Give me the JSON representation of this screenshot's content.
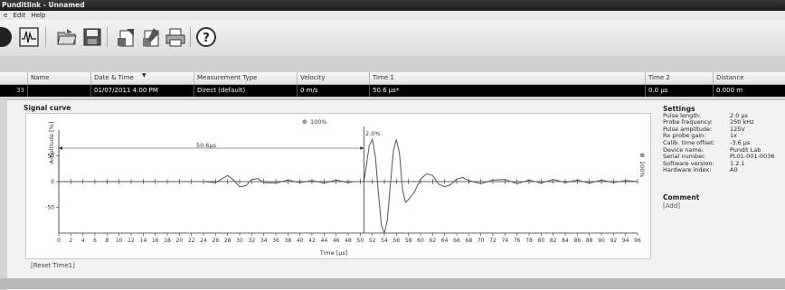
{
  "window": {
    "title": "Punditlink - Unnamed"
  },
  "menu": {
    "items": [
      "e",
      "Edit",
      "Help"
    ]
  },
  "toolbar": {
    "icons": [
      "record-icon",
      "signal-wave-icon",
      "open-folder-icon",
      "save-icon",
      "export-report-icon",
      "edit-report-icon",
      "print-icon",
      "help-icon"
    ]
  },
  "table": {
    "headers": {
      "name": "Name",
      "date": "Date & Time",
      "type": "Measurement Type",
      "velocity": "Velocity",
      "time1": "Time 1",
      "time2": "Time 2",
      "distance": "Distance"
    },
    "row": {
      "index": "33",
      "name": "",
      "date": "01/07/2011 4:00 PM",
      "type": "Direct (default)",
      "velocity": "0 m/s",
      "time1": "50.6 µs*",
      "time2": "0.0 µs",
      "distance": "0.000 m"
    }
  },
  "signal": {
    "title": "Signal curve",
    "zoom_top": "100%",
    "zoom_side": "100%",
    "time_label": "50.6µs",
    "marker_label": "2.0%",
    "ylabel": "Amplitude [%]",
    "xlabel": "Time [µs]",
    "reset_label": "[Reset Time1]"
  },
  "settings": {
    "title": "Settings",
    "items": [
      {
        "key": "Pulse length:",
        "value": "2.0 µs"
      },
      {
        "key": "Probe frequency:",
        "value": "250 kHz"
      },
      {
        "key": "Pulse amplitude:",
        "value": "125V"
      },
      {
        "key": "Rx probe gain:",
        "value": "1x"
      },
      {
        "key": "Calib. time offset:",
        "value": "-3.6 µs"
      },
      {
        "key": "Device name:",
        "value": "Pundit Lab"
      },
      {
        "key": "Serial number:",
        "value": "PL01-001-0036"
      },
      {
        "key": "Software version:",
        "value": "1.2.1"
      },
      {
        "key": "Hardware index:",
        "value": "A0"
      }
    ]
  },
  "comment": {
    "title": "Comment",
    "add_label": "[Add]"
  },
  "chart_data": {
    "type": "line",
    "xlabel": "Time [µs]",
    "ylabel": "Amplitude [%]",
    "xlim": [
      0,
      96
    ],
    "ylim": [
      -100,
      100
    ],
    "xticks": [
      0,
      2,
      4,
      6,
      8,
      10,
      12,
      14,
      16,
      18,
      20,
      22,
      24,
      26,
      28,
      30,
      32,
      34,
      36,
      38,
      40,
      42,
      44,
      46,
      48,
      50,
      52,
      54,
      56,
      58,
      60,
      62,
      64,
      66,
      68,
      70,
      72,
      74,
      76,
      78,
      80,
      82,
      84,
      86,
      88,
      90,
      92,
      94,
      96
    ],
    "yticks": [
      50,
      0,
      -50
    ],
    "markers": {
      "time1": 50.6
    },
    "series": [
      {
        "x": [
          0,
          24,
          26,
          27,
          28,
          29,
          30,
          31,
          32,
          33,
          34,
          36,
          38,
          40,
          42,
          44,
          46,
          48,
          49,
          50,
          50.6,
          51,
          51.5,
          52,
          52.5,
          53,
          53.5,
          54,
          54.5,
          55,
          55.5,
          56,
          56.5,
          57,
          57.5,
          58,
          59,
          60,
          61,
          62,
          63,
          64,
          65,
          66,
          67,
          68,
          70,
          72,
          74,
          76,
          78,
          80,
          82,
          84,
          86,
          88,
          90,
          92,
          94,
          96
        ],
        "y": [
          0,
          0,
          -2,
          5,
          12,
          3,
          -10,
          -8,
          4,
          6,
          -2,
          -3,
          3,
          -2,
          2,
          -3,
          3,
          -2,
          0,
          0,
          0,
          30,
          70,
          82,
          50,
          -20,
          -85,
          -100,
          -75,
          -5,
          60,
          82,
          55,
          -15,
          -40,
          -35,
          -20,
          5,
          15,
          12,
          -5,
          -10,
          -6,
          5,
          8,
          2,
          -4,
          3,
          4,
          -4,
          3,
          -3,
          4,
          -2,
          3,
          -3,
          3,
          -2,
          2,
          0
        ]
      }
    ]
  },
  "colors": {
    "title_bar": "#222222",
    "selected_row": "#000000",
    "curve": "#555555"
  }
}
